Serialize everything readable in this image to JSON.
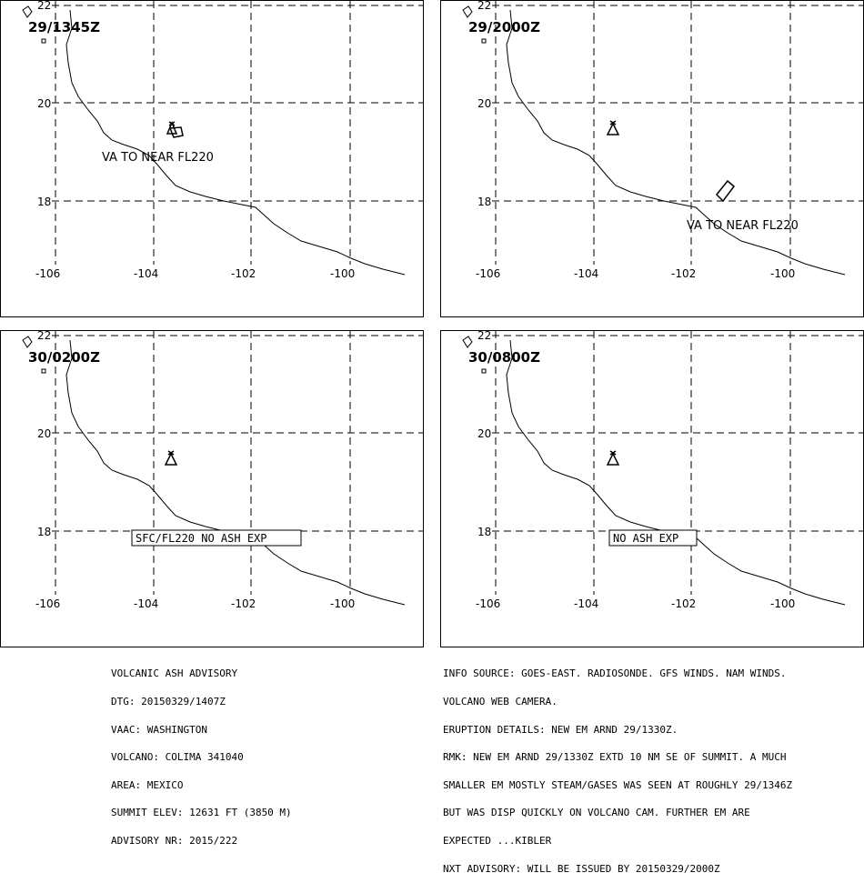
{
  "panels": [
    {
      "time": "29/1345Z",
      "lat_labels": [
        "22",
        "20",
        "18"
      ],
      "lon_labels": [
        "-106",
        "-104",
        "-102",
        "-100"
      ],
      "annotation": {
        "text": "VA TO NEAR FL220",
        "boxed": false
      }
    },
    {
      "time": "29/2000Z",
      "lat_labels": [
        "22",
        "20",
        "18"
      ],
      "lon_labels": [
        "-106",
        "-104",
        "-102",
        "-100"
      ],
      "annotation": {
        "text": "VA TO NEAR FL220",
        "boxed": false
      }
    },
    {
      "time": "30/0200Z",
      "lat_labels": [
        "22",
        "20",
        "18"
      ],
      "lon_labels": [
        "-106",
        "-104",
        "-102",
        "-100"
      ],
      "annotation": {
        "text": "SFC/FL220 NO ASH EXP",
        "boxed": true
      }
    },
    {
      "time": "30/0800Z",
      "lat_labels": [
        "22",
        "20",
        "18"
      ],
      "lon_labels": [
        "-106",
        "-104",
        "-102",
        "-100"
      ],
      "annotation": {
        "text": "NO ASH EXP",
        "boxed": true
      }
    }
  ],
  "advisory_left": [
    "VOLCANIC ASH ADVISORY",
    "DTG: 20150329/1407Z",
    "VAAC: WASHINGTON",
    "VOLCANO: COLIMA 341040",
    "AREA: MEXICO",
    "SUMMIT ELEV: 12631 FT (3850 M)",
    "ADVISORY NR: 2015/222"
  ],
  "advisory_right": [
    "INFO SOURCE: GOES-EAST. RADIOSONDE. GFS WINDS. NAM WINDS.",
    "VOLCANO WEB CAMERA.",
    "ERUPTION DETAILS: NEW EM ARND 29/1330Z.",
    "RMK: NEW EM ARND 29/1330Z EXTD 10 NM SE OF SUMMIT. A MUCH",
    "SMALLER EM MOSTLY STEAM/GASES WAS SEEN AT ROUGHLY 29/1346Z",
    "BUT WAS DISP QUICKLY ON VOLCANO CAM. FURTHER EM ARE",
    "EXPECTED ...KIBLER",
    "NXT ADVISORY: WILL BE ISSUED BY 20150329/2000Z"
  ]
}
